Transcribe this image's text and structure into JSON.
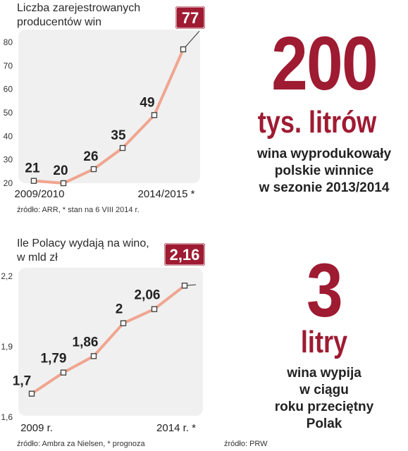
{
  "chart_data": [
    {
      "type": "line",
      "title": "Liczba zarejestrowanych\nproducentów win",
      "x_labels": [
        "2009/2010",
        "2014/2015 *"
      ],
      "y_ticks": [
        20,
        30,
        40,
        50,
        60,
        70,
        80
      ],
      "ylim": [
        20,
        80
      ],
      "series": [
        {
          "values": [
            21,
            20,
            26,
            35,
            49,
            77
          ],
          "labels": [
            "21",
            "20",
            "26",
            "35",
            "49",
            "77"
          ]
        }
      ],
      "highlight_label": "77",
      "source": "źródło: ARR, * stan na 6 VIII 2014 r.",
      "line_color": "#f0a58f",
      "highlight_color": "#9e1b32",
      "grid": false
    },
    {
      "type": "line",
      "title": "Ile Polacy wydają na wino,\nw mld zł",
      "x_labels": [
        "2009 r.",
        "2014 r. *"
      ],
      "y_ticks": [
        "1,6",
        "1,9",
        "2,2"
      ],
      "ylim": [
        1.6,
        2.2
      ],
      "series": [
        {
          "values": [
            1.7,
            1.79,
            1.86,
            2.0,
            2.06,
            2.16
          ],
          "labels": [
            "1,7",
            "1,79",
            "1,86",
            "2",
            "2,06",
            "2,16"
          ]
        }
      ],
      "highlight_label": "2,16",
      "source": "źródło: Ambra za Nielsen, * prognoza",
      "line_color": "#f0a58f",
      "highlight_color": "#9e1b32",
      "grid": false
    }
  ],
  "facts": [
    {
      "number": "200",
      "unit": "tys. litrów",
      "description": "wina wyprodukowały\npolskie winnice\nw sezonie 2013/2014"
    },
    {
      "number": "3",
      "unit": "litry",
      "description": "wina wypija\nw ciągu\nroku przeciętny\nPolak",
      "source": "źródło: PRW"
    }
  ],
  "colors": {
    "accent": "#9e1b32",
    "panel": "#f0f0f0",
    "line": "#f0a58f"
  }
}
